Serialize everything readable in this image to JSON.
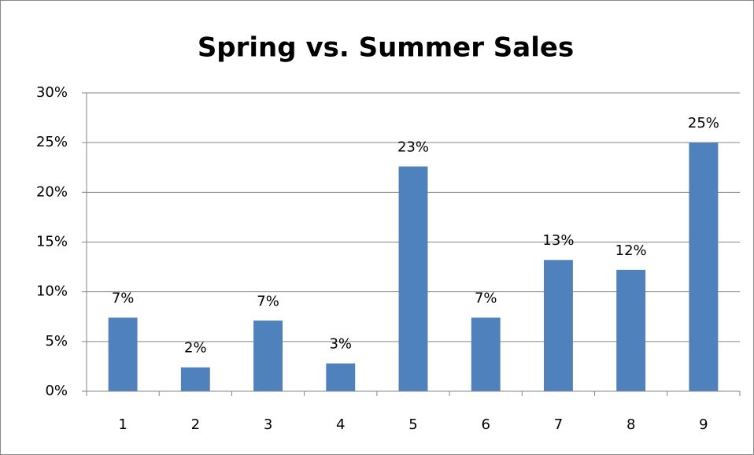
{
  "chart_data": {
    "type": "bar",
    "title": "Spring vs. Summer Sales",
    "categories": [
      "1",
      "2",
      "3",
      "4",
      "5",
      "6",
      "7",
      "8",
      "9"
    ],
    "values": [
      7.4,
      2.4,
      7.1,
      2.8,
      22.6,
      7.4,
      13.2,
      12.2,
      25.0
    ],
    "value_labels": [
      "7%",
      "2%",
      "7%",
      "3%",
      "23%",
      "7%",
      "13%",
      "12%",
      "25%"
    ],
    "color": "#4f81bd",
    "ylim": [
      0,
      30
    ],
    "yticks": [
      {
        "value": 0,
        "label": "0%"
      },
      {
        "value": 5,
        "label": "5%"
      },
      {
        "value": 10,
        "label": "10%"
      },
      {
        "value": 15,
        "label": "15%"
      },
      {
        "value": 20,
        "label": "20%"
      },
      {
        "value": 25,
        "label": "25%"
      },
      {
        "value": 30,
        "label": "30%"
      }
    ],
    "grid": true
  }
}
